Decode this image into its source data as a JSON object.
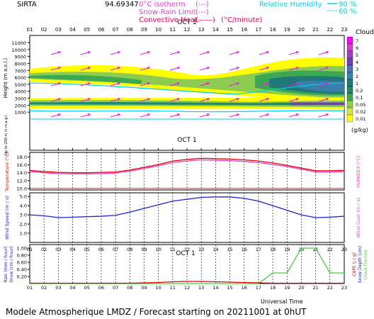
{
  "header": {
    "station": "SIRTA",
    "coords": "94.69347",
    "legend_left": [
      {
        "label": "0°C isotherm",
        "symbol": "(---)",
        "color": "#e040c0"
      },
      {
        "label": "Snow-Rain Limit",
        "symbol": "(---)",
        "color": "#e040c0"
      },
      {
        "label": "Convective Heat.",
        "symbol": "(——)",
        "unit": "(°C/minute)",
        "color": "#e0004c"
      }
    ],
    "legend_right": {
      "label": "Relative Humidity",
      "v1": "90 %",
      "v2": "60 %",
      "color": "#00d0e0"
    }
  },
  "footer": {
    "model_text": "Modele Atmospherique LMDZ / Forecast starting on 20211001 at 0hUT",
    "time_label": "Universal Time"
  },
  "chart_data": [
    {
      "type": "heatmap",
      "name": "clouds",
      "x_ticks": [
        "01",
        "02",
        "03",
        "04",
        "05",
        "06",
        "07",
        "08",
        "09",
        "10",
        "11",
        "12",
        "13",
        "14",
        "15",
        "16",
        "17",
        "18",
        "19",
        "20",
        "21",
        "22",
        "23"
      ],
      "date_label": "OCT  1",
      "ylabel": "Height (m a.s.l.)",
      "ylabel_lower": "Up to 200 m in m.a.g.l.",
      "y_ticks_upper": [
        1000,
        2000,
        3000,
        4000,
        5000,
        6000,
        7000,
        8000,
        9000,
        10000,
        11000
      ],
      "y_ticks_lower": [
        10,
        20,
        30,
        40,
        50,
        60,
        70,
        80,
        90,
        100,
        110,
        120,
        140,
        150,
        160,
        170,
        180,
        190
      ],
      "colorbar": {
        "title": "Clouds",
        "unit": "(g/kg)",
        "levels": [
          "0.01",
          "0.02",
          "0.05",
          "0.1",
          "0.2",
          "1",
          "2",
          "3",
          "4",
          "5",
          "6",
          "7"
        ],
        "colors": [
          "#ffff00",
          "#d0e84c",
          "#8ccc50",
          "#3ca850",
          "#208870",
          "#207878",
          "#3880a8",
          "#5070b8",
          "#7040b0",
          "#a040c0",
          "#d040d0",
          "#ff00ff"
        ]
      }
    },
    {
      "type": "line",
      "name": "temperature",
      "ylabel": "Temperature (°C)",
      "ylabel_right": "HUMIDEX (°C)",
      "y_ticks": [
        "10.0",
        "12.0",
        "14.0",
        "16.0",
        "18.0"
      ],
      "ylim": [
        9.6,
        19.2
      ],
      "x": [
        1,
        2,
        3,
        4,
        5,
        6,
        7,
        8,
        9,
        10,
        11,
        12,
        13,
        14,
        15,
        16,
        17,
        18,
        19,
        20,
        21,
        22,
        23
      ],
      "series": [
        {
          "values": [
            14.6,
            14.3,
            14.1,
            14.0,
            14.0,
            14.1,
            14.2,
            14.7,
            15.4,
            16.1,
            17.0,
            17.4,
            17.7,
            17.6,
            17.5,
            17.3,
            17.0,
            16.5,
            15.9,
            15.2,
            14.5,
            14.5,
            14.6
          ],
          "color": "#e00000"
        },
        {
          "values": [
            14.3,
            14.0,
            13.8,
            13.7,
            13.7,
            13.8,
            13.9,
            14.4,
            15.1,
            15.8,
            16.6,
            17.0,
            17.3,
            17.2,
            17.1,
            16.9,
            16.6,
            16.1,
            15.6,
            14.9,
            14.2,
            14.2,
            14.3
          ],
          "color": "#e040c0"
        }
      ]
    },
    {
      "type": "line",
      "name": "wind",
      "ylabel": "Wind Speed (m / s)",
      "ylabel_right": "Wind Gust (m / s)",
      "y_ticks": [
        "1.0",
        "2.0",
        "3.0",
        "4.0",
        "5.0"
      ],
      "ylim": [
        0,
        5.4
      ],
      "x": [
        1,
        2,
        3,
        4,
        5,
        6,
        7,
        8,
        9,
        10,
        11,
        12,
        13,
        14,
        15,
        16,
        17,
        18,
        19,
        20,
        21,
        22,
        23
      ],
      "series": [
        {
          "values": [
            3.0,
            2.9,
            2.7,
            2.75,
            2.8,
            2.85,
            2.95,
            3.3,
            3.7,
            4.1,
            4.5,
            4.7,
            4.9,
            4.95,
            4.95,
            4.8,
            4.5,
            4.0,
            3.5,
            3.0,
            2.7,
            2.75,
            2.85
          ],
          "color": "#2020d0"
        }
      ]
    },
    {
      "type": "line",
      "name": "precipitation",
      "ylabel": "Rain (mm / hour)",
      "ylabel_2": "Snow (cm / hour)",
      "ylabel_right": "CAPE (J / g)",
      "ylabel_right_2": "Snow Depth (cm)",
      "ylabel_right_3": "Cloud Fraction",
      "y_ticks": [
        "0.20",
        "0.40",
        "0.60",
        "0.80",
        "1.00"
      ],
      "ylim": [
        0,
        1.1
      ],
      "x": [
        1,
        2,
        3,
        4,
        5,
        6,
        7,
        8,
        9,
        10,
        11,
        12,
        13,
        14,
        15,
        16,
        17,
        18,
        19,
        20,
        21,
        22,
        23
      ],
      "series": [
        {
          "values": [
            0,
            0,
            0,
            0,
            0,
            0,
            0,
            0,
            0,
            0,
            0,
            0,
            0,
            0,
            0,
            0,
            0,
            0.3,
            0.3,
            1.0,
            1.0,
            0.3,
            0.3
          ],
          "color": "#40d040"
        },
        {
          "values": [
            0.01,
            0.01,
            0.01,
            0.01,
            0.01,
            0.01,
            0.01,
            0.01,
            0.02,
            0.03,
            0.05,
            0.06,
            0.06,
            0.05,
            0.04,
            0.03,
            0.02,
            0.01,
            0.01,
            0.01,
            0.01,
            0.01,
            0.01
          ],
          "color": "#e00000"
        }
      ]
    }
  ]
}
